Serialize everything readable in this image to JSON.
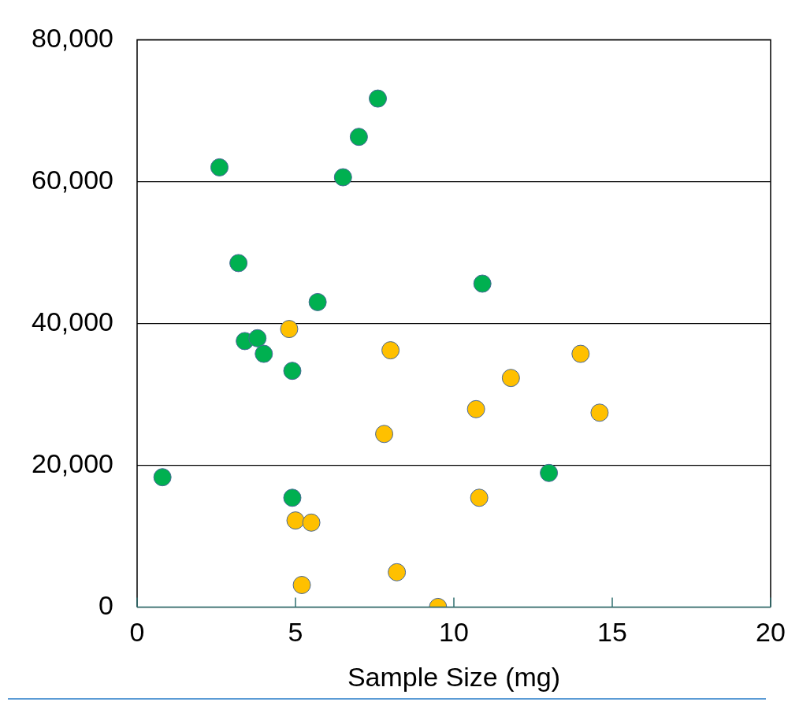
{
  "chart_data": {
    "type": "scatter",
    "xlabel": "Sample Size (mg)",
    "xlim": [
      0,
      20
    ],
    "xticks": [
      0,
      5,
      10,
      15,
      20
    ],
    "ylim": [
      0,
      80000
    ],
    "yticks": [
      {
        "value": 0,
        "label": "0"
      },
      {
        "value": 20000,
        "label": "20,000"
      },
      {
        "value": 40000,
        "label": "40,000"
      },
      {
        "value": 60000,
        "label": "60,000"
      },
      {
        "value": 80000,
        "label": "80,000"
      }
    ],
    "grid": "y",
    "legend": false,
    "marker": "circle",
    "series": [
      {
        "color": "#00b050",
        "x": [
          0.8,
          2.6,
          3.2,
          3.4,
          3.8,
          4.0,
          4.9,
          4.9,
          5.7,
          6.5,
          7.0,
          7.6,
          10.9,
          13.0
        ],
        "values": [
          18300,
          62000,
          48500,
          37500,
          37900,
          35700,
          33300,
          15400,
          43000,
          60600,
          66300,
          71700,
          45600,
          18900
        ]
      },
      {
        "color": "#ffc000",
        "x": [
          4.8,
          5.0,
          5.5,
          5.2,
          8.0,
          7.8,
          8.2,
          9.5,
          10.7,
          10.8,
          11.8,
          14.0,
          14.6
        ],
        "values": [
          39200,
          12200,
          11900,
          3100,
          36200,
          24400,
          4900,
          0,
          27900,
          15400,
          32300,
          35700,
          27400
        ]
      }
    ]
  }
}
